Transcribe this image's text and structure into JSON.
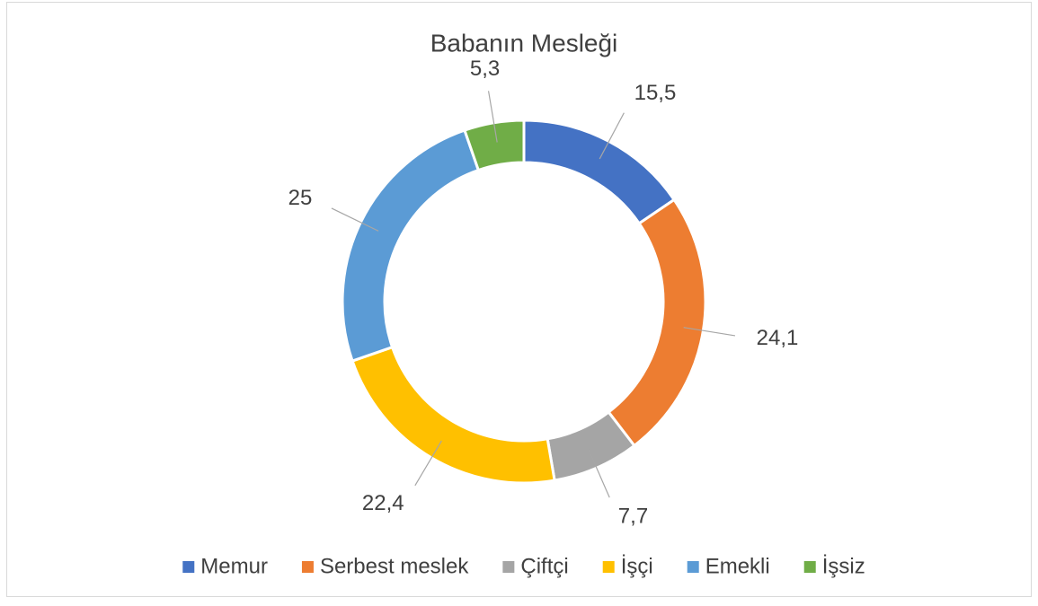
{
  "chart_data": {
    "type": "donut",
    "title": "Babanın Mesleği",
    "categories": [
      "Memur",
      "Serbest meslek",
      "Çiftçi",
      "İşçi",
      "Emekli",
      "İşsiz"
    ],
    "values": [
      15.5,
      24.1,
      7.7,
      22.4,
      25,
      5.3
    ],
    "value_labels": [
      "15,5",
      "24,1",
      "7,7",
      "22,4",
      "25",
      "5,3"
    ],
    "colors": [
      "#4472c4",
      "#ed7d31",
      "#a5a5a5",
      "#ffc000",
      "#5b9bd5",
      "#70ad47"
    ],
    "legend": "bottom"
  }
}
